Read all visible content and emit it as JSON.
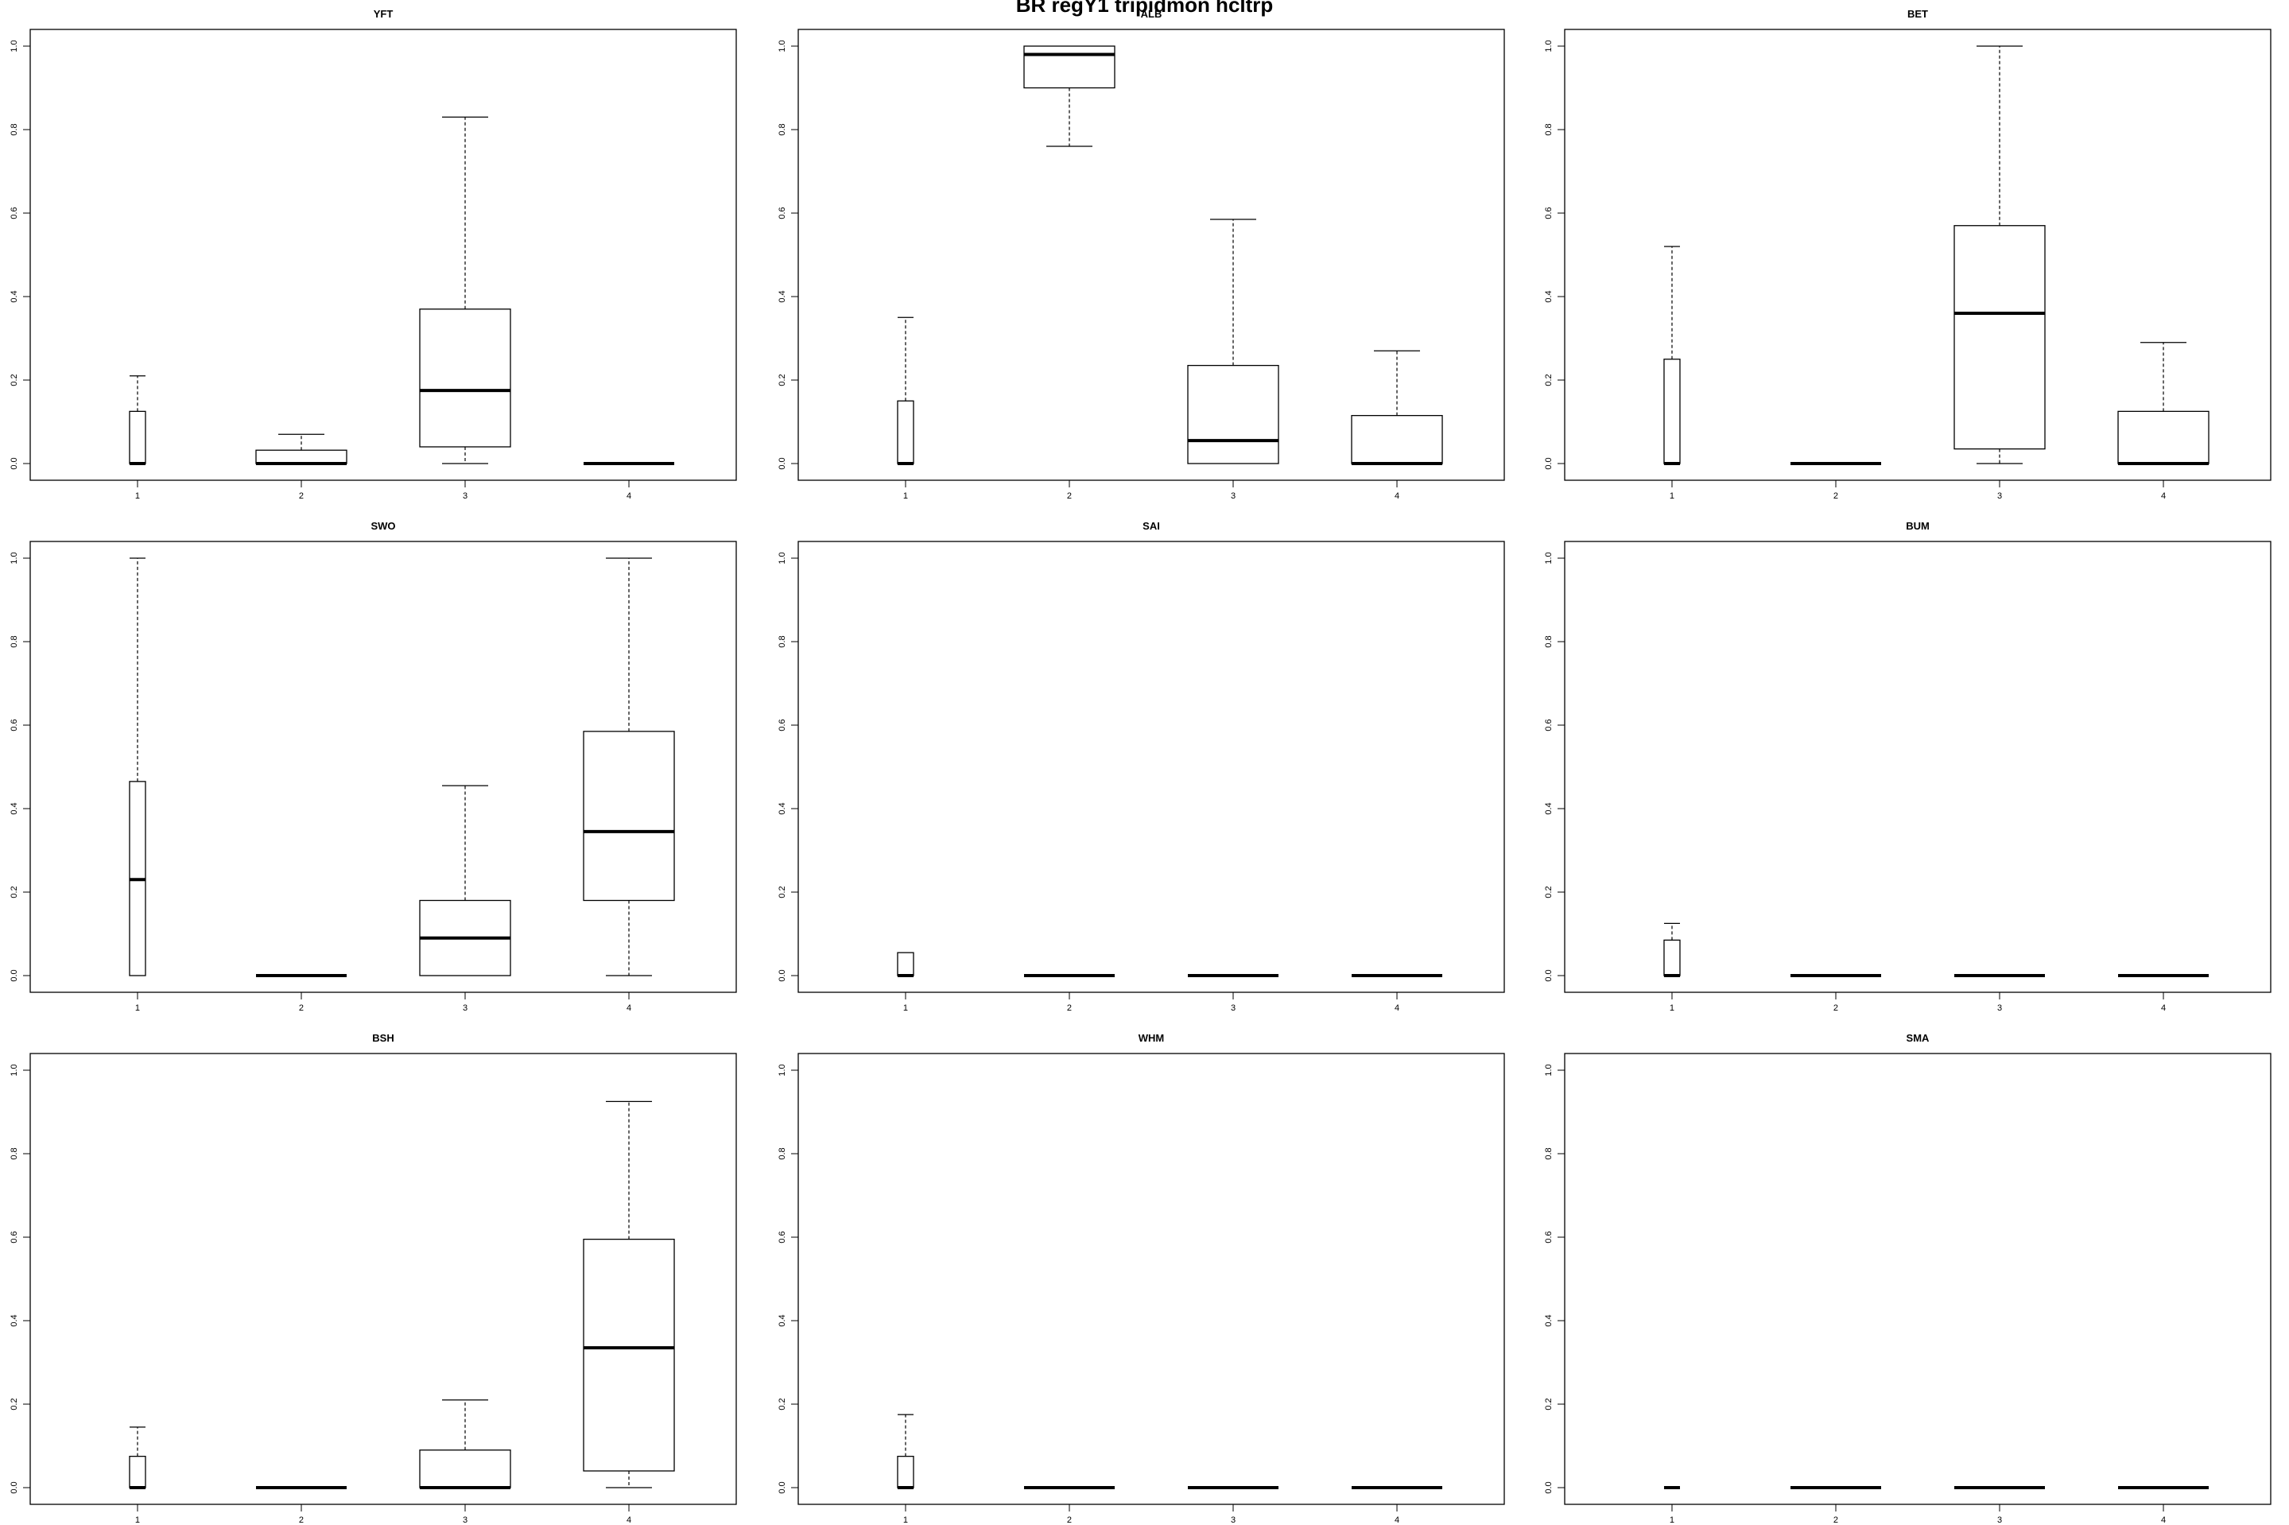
{
  "page": {
    "title": "BR regY1 tripidmon hcltrp"
  },
  "chart_data": {
    "type": "boxplot",
    "title": "BR regY1 tripidmon hcltrp",
    "layout": "3x3 grid",
    "categories": [
      "1",
      "2",
      "3",
      "4"
    ],
    "ylim": [
      0,
      1
    ],
    "yticks": [
      "0.0",
      "0.2",
      "0.4",
      "0.6",
      "0.8",
      "1.0"
    ],
    "xlabel": "",
    "ylabel": "",
    "colors": {
      "axis": "#000000",
      "box_fill": "#ffffff",
      "stroke": "#000000"
    },
    "panels": [
      {
        "title": "YFT",
        "boxes": [
          {
            "category": "1",
            "min": 0,
            "q1": 0,
            "median": 0,
            "q3": 0.125,
            "max": 0.21
          },
          {
            "category": "2",
            "min": 0,
            "q1": 0,
            "median": 0,
            "q3": 0.032,
            "max": 0.07
          },
          {
            "category": "3",
            "min": 0,
            "q1": 0.04,
            "median": 0.175,
            "q3": 0.37,
            "max": 0.83
          },
          {
            "category": "4",
            "min": 0,
            "q1": 0,
            "median": 0,
            "q3": 0,
            "max": 0
          }
        ]
      },
      {
        "title": "ALB",
        "boxes": [
          {
            "category": "1",
            "min": 0,
            "q1": 0,
            "median": 0,
            "q3": 0.15,
            "max": 0.35
          },
          {
            "category": "2",
            "min": 0.76,
            "q1": 0.9,
            "median": 0.98,
            "q3": 1.0,
            "max": 1.0
          },
          {
            "category": "3",
            "min": 0,
            "q1": 0,
            "median": 0.055,
            "q3": 0.235,
            "max": 0.585
          },
          {
            "category": "4",
            "min": 0,
            "q1": 0,
            "median": 0,
            "q3": 0.115,
            "max": 0.27
          }
        ]
      },
      {
        "title": "BET",
        "boxes": [
          {
            "category": "1",
            "min": 0,
            "q1": 0,
            "median": 0,
            "q3": 0.25,
            "max": 0.52
          },
          {
            "category": "2",
            "min": 0,
            "q1": 0,
            "median": 0,
            "q3": 0,
            "max": 0
          },
          {
            "category": "3",
            "min": 0,
            "q1": 0.035,
            "median": 0.36,
            "q3": 0.57,
            "max": 1.0
          },
          {
            "category": "4",
            "min": 0,
            "q1": 0,
            "median": 0,
            "q3": 0.125,
            "max": 0.29
          }
        ]
      },
      {
        "title": "SWO",
        "boxes": [
          {
            "category": "1",
            "min": 0,
            "q1": 0,
            "median": 0.23,
            "q3": 0.465,
            "max": 1.0
          },
          {
            "category": "2",
            "min": 0,
            "q1": 0,
            "median": 0,
            "q3": 0,
            "max": 0
          },
          {
            "category": "3",
            "min": 0,
            "q1": 0,
            "median": 0.09,
            "q3": 0.18,
            "max": 0.455
          },
          {
            "category": "4",
            "min": 0,
            "q1": 0.18,
            "median": 0.345,
            "q3": 0.585,
            "max": 1.0
          }
        ]
      },
      {
        "title": "SAI",
        "boxes": [
          {
            "category": "1",
            "min": 0,
            "q1": 0,
            "median": 0,
            "q3": 0.055,
            "max": 0.055
          },
          {
            "category": "2",
            "min": 0,
            "q1": 0,
            "median": 0,
            "q3": 0,
            "max": 0
          },
          {
            "category": "3",
            "min": 0,
            "q1": 0,
            "median": 0,
            "q3": 0,
            "max": 0
          },
          {
            "category": "4",
            "min": 0,
            "q1": 0,
            "median": 0,
            "q3": 0,
            "max": 0
          }
        ]
      },
      {
        "title": "BUM",
        "boxes": [
          {
            "category": "1",
            "min": 0,
            "q1": 0,
            "median": 0,
            "q3": 0.085,
            "max": 0.125
          },
          {
            "category": "2",
            "min": 0,
            "q1": 0,
            "median": 0,
            "q3": 0,
            "max": 0
          },
          {
            "category": "3",
            "min": 0,
            "q1": 0,
            "median": 0,
            "q3": 0,
            "max": 0
          },
          {
            "category": "4",
            "min": 0,
            "q1": 0,
            "median": 0,
            "q3": 0,
            "max": 0
          }
        ]
      },
      {
        "title": "BSH",
        "boxes": [
          {
            "category": "1",
            "min": 0,
            "q1": 0,
            "median": 0,
            "q3": 0.075,
            "max": 0.145
          },
          {
            "category": "2",
            "min": 0,
            "q1": 0,
            "median": 0,
            "q3": 0,
            "max": 0
          },
          {
            "category": "3",
            "min": 0,
            "q1": 0,
            "median": 0,
            "q3": 0.09,
            "max": 0.21
          },
          {
            "category": "4",
            "min": 0,
            "q1": 0.04,
            "median": 0.335,
            "q3": 0.595,
            "max": 0.925
          }
        ]
      },
      {
        "title": "WHM",
        "boxes": [
          {
            "category": "1",
            "min": 0,
            "q1": 0,
            "median": 0,
            "q3": 0.075,
            "max": 0.175
          },
          {
            "category": "2",
            "min": 0,
            "q1": 0,
            "median": 0,
            "q3": 0,
            "max": 0
          },
          {
            "category": "3",
            "min": 0,
            "q1": 0,
            "median": 0,
            "q3": 0,
            "max": 0
          },
          {
            "category": "4",
            "min": 0,
            "q1": 0,
            "median": 0,
            "q3": 0,
            "max": 0
          }
        ]
      },
      {
        "title": "SMA",
        "boxes": [
          {
            "category": "1",
            "min": 0,
            "q1": 0,
            "median": 0,
            "q3": 0,
            "max": 0
          },
          {
            "category": "2",
            "min": 0,
            "q1": 0,
            "median": 0,
            "q3": 0,
            "max": 0
          },
          {
            "category": "3",
            "min": 0,
            "q1": 0,
            "median": 0,
            "q3": 0,
            "max": 0
          },
          {
            "category": "4",
            "min": 0,
            "q1": 0,
            "median": 0,
            "q3": 0,
            "max": 0
          }
        ]
      }
    ]
  }
}
